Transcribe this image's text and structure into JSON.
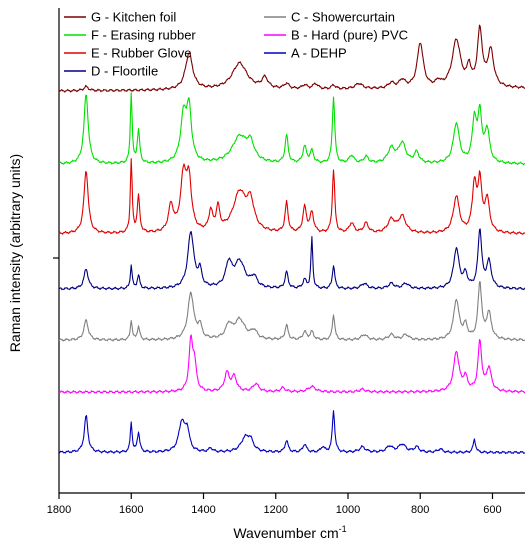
{
  "chart_data": {
    "type": "line",
    "title": "",
    "xlabel": "Wavenumber cm",
    "xlabel_superscript": "-1",
    "ylabel": "Raman intensity (arbitrary units)",
    "x_reversed": true,
    "xlim": [
      1800,
      510
    ],
    "ylim": [
      0,
      7.3
    ],
    "x_ticks": [
      1800,
      1600,
      1400,
      1200,
      1000,
      800,
      600
    ],
    "y_ticks_labeled": false,
    "grid": false,
    "legend_position": "top-left",
    "legend_columns": 2,
    "series": [
      {
        "name": "G - Kitchen foil",
        "color": "#7b0000",
        "offset": 6.0,
        "baseline": 0.05,
        "baseline_slope": 0.04,
        "peaks": [
          [
            1725,
            0.06,
            8
          ],
          [
            1440,
            0.55,
            12
          ],
          [
            1300,
            0.4,
            25
          ],
          [
            1230,
            0.16,
            10
          ],
          [
            1170,
            0.08,
            8
          ],
          [
            1120,
            0.06,
            8
          ],
          [
            1090,
            0.08,
            8
          ],
          [
            1040,
            0.06,
            6
          ],
          [
            970,
            0.08,
            12
          ],
          [
            880,
            0.08,
            10
          ],
          [
            850,
            0.12,
            10
          ],
          [
            800,
            0.68,
            10
          ],
          [
            750,
            0.08,
            8
          ],
          [
            700,
            0.72,
            14
          ],
          [
            665,
            0.28,
            6
          ],
          [
            635,
            0.85,
            8
          ],
          [
            605,
            0.55,
            10
          ]
        ]
      },
      {
        "name": "F - Erasing rubber",
        "color": "#00e000",
        "offset": 4.9,
        "baseline": 0.05,
        "baseline_slope": 0.0,
        "peaks": [
          [
            1725,
            1.05,
            7
          ],
          [
            1600,
            1.05,
            3
          ],
          [
            1580,
            0.5,
            4
          ],
          [
            1455,
            0.7,
            10
          ],
          [
            1440,
            0.75,
            8
          ],
          [
            1300,
            0.4,
            25
          ],
          [
            1270,
            0.25,
            12
          ],
          [
            1170,
            0.42,
            5
          ],
          [
            1120,
            0.25,
            6
          ],
          [
            1100,
            0.18,
            6
          ],
          [
            1040,
            1.0,
            4
          ],
          [
            990,
            0.12,
            8
          ],
          [
            950,
            0.1,
            8
          ],
          [
            880,
            0.22,
            12
          ],
          [
            850,
            0.3,
            12
          ],
          [
            810,
            0.16,
            8
          ],
          [
            700,
            0.6,
            10
          ],
          [
            650,
            0.65,
            7
          ],
          [
            635,
            0.72,
            6
          ],
          [
            615,
            0.5,
            8
          ]
        ]
      },
      {
        "name": "E - Rubber Glove",
        "color": "#e00000",
        "offset": 3.85,
        "baseline": 0.05,
        "baseline_slope": 0.0,
        "peaks": [
          [
            1725,
            0.95,
            7
          ],
          [
            1600,
            1.1,
            3
          ],
          [
            1580,
            0.55,
            4
          ],
          [
            1490,
            0.4,
            8
          ],
          [
            1455,
            0.85,
            10
          ],
          [
            1440,
            0.7,
            8
          ],
          [
            1380,
            0.3,
            6
          ],
          [
            1360,
            0.35,
            6
          ],
          [
            1300,
            0.6,
            22
          ],
          [
            1270,
            0.4,
            12
          ],
          [
            1170,
            0.45,
            5
          ],
          [
            1120,
            0.38,
            6
          ],
          [
            1100,
            0.3,
            6
          ],
          [
            1040,
            0.95,
            4
          ],
          [
            990,
            0.15,
            8
          ],
          [
            950,
            0.15,
            8
          ],
          [
            880,
            0.2,
            12
          ],
          [
            850,
            0.25,
            12
          ],
          [
            700,
            0.55,
            10
          ],
          [
            650,
            0.72,
            7
          ],
          [
            635,
            0.75,
            6
          ],
          [
            615,
            0.5,
            8
          ]
        ]
      },
      {
        "name": "D - Floortile",
        "color": "#000080",
        "offset": 3.05,
        "baseline": 0.02,
        "baseline_slope": 0.0,
        "peaks": [
          [
            1725,
            0.3,
            7
          ],
          [
            1600,
            0.35,
            3
          ],
          [
            1580,
            0.2,
            4
          ],
          [
            1435,
            0.85,
            10
          ],
          [
            1410,
            0.25,
            6
          ],
          [
            1330,
            0.35,
            10
          ],
          [
            1300,
            0.4,
            18
          ],
          [
            1260,
            0.15,
            10
          ],
          [
            1170,
            0.25,
            5
          ],
          [
            1120,
            0.13,
            6
          ],
          [
            1100,
            0.75,
            3
          ],
          [
            1040,
            0.35,
            4
          ],
          [
            955,
            0.08,
            10
          ],
          [
            880,
            0.08,
            10
          ],
          [
            840,
            0.08,
            10
          ],
          [
            700,
            0.6,
            9
          ],
          [
            675,
            0.2,
            7
          ],
          [
            635,
            0.88,
            6
          ],
          [
            610,
            0.4,
            8
          ]
        ]
      },
      {
        "name": "C - Showercurtain",
        "color": "#808080",
        "offset": 2.25,
        "baseline": 0.05,
        "baseline_slope": 0.0,
        "peaks": [
          [
            1725,
            0.3,
            7
          ],
          [
            1600,
            0.3,
            3
          ],
          [
            1580,
            0.2,
            4
          ],
          [
            1435,
            0.7,
            10
          ],
          [
            1410,
            0.2,
            6
          ],
          [
            1330,
            0.2,
            10
          ],
          [
            1300,
            0.3,
            18
          ],
          [
            1260,
            0.12,
            10
          ],
          [
            1170,
            0.22,
            5
          ],
          [
            1120,
            0.12,
            6
          ],
          [
            1100,
            0.12,
            6
          ],
          [
            1040,
            0.38,
            4
          ],
          [
            955,
            0.08,
            10
          ],
          [
            880,
            0.08,
            10
          ],
          [
            840,
            0.08,
            10
          ],
          [
            700,
            0.6,
            9
          ],
          [
            675,
            0.2,
            7
          ],
          [
            635,
            0.85,
            6
          ],
          [
            610,
            0.4,
            8
          ]
        ]
      },
      {
        "name": "B - Hard (pure) PVC",
        "color": "#ff00ff",
        "offset": 1.5,
        "baseline": 0.02,
        "baseline_slope": 0.0,
        "peaks": [
          [
            1435,
            0.75,
            6
          ],
          [
            1425,
            0.4,
            6
          ],
          [
            1335,
            0.28,
            8
          ],
          [
            1315,
            0.22,
            8
          ],
          [
            1255,
            0.12,
            10
          ],
          [
            1180,
            0.06,
            8
          ],
          [
            1100,
            0.08,
            12
          ],
          [
            960,
            0.04,
            10
          ],
          [
            700,
            0.6,
            9
          ],
          [
            675,
            0.2,
            7
          ],
          [
            635,
            0.75,
            6
          ],
          [
            610,
            0.35,
            8
          ]
        ]
      },
      {
        "name": "A - DEHP",
        "color": "#0000c0",
        "offset": 0.6,
        "baseline": 0.01,
        "baseline_slope": 0.0,
        "peaks": [
          [
            1725,
            0.55,
            6
          ],
          [
            1600,
            0.45,
            3
          ],
          [
            1580,
            0.3,
            4
          ],
          [
            1460,
            0.45,
            10
          ],
          [
            1445,
            0.3,
            7
          ],
          [
            1380,
            0.06,
            6
          ],
          [
            1285,
            0.2,
            14
          ],
          [
            1270,
            0.15,
            10
          ],
          [
            1170,
            0.18,
            5
          ],
          [
            1120,
            0.12,
            6
          ],
          [
            1070,
            0.08,
            6
          ],
          [
            1040,
            0.62,
            4
          ],
          [
            960,
            0.08,
            10
          ],
          [
            885,
            0.09,
            10
          ],
          [
            850,
            0.12,
            12
          ],
          [
            810,
            0.08,
            8
          ],
          [
            745,
            0.05,
            8
          ],
          [
            650,
            0.2,
            4
          ]
        ]
      }
    ],
    "legend": [
      {
        "name": "G - Kitchen foil",
        "color": "#7b0000",
        "col": 0,
        "row": 0
      },
      {
        "name": "F - Erasing rubber",
        "color": "#00e000",
        "col": 0,
        "row": 1
      },
      {
        "name": "E - Rubber Glove",
        "color": "#e00000",
        "col": 0,
        "row": 2
      },
      {
        "name": "D - Floortile",
        "color": "#000080",
        "col": 0,
        "row": 3
      },
      {
        "name": "C - Showercurtain",
        "color": "#808080",
        "col": 1,
        "row": 0
      },
      {
        "name": "B - Hard (pure) PVC",
        "color": "#ff00ff",
        "col": 1,
        "row": 1
      },
      {
        "name": "A - DEHP",
        "color": "#0000c0",
        "col": 1,
        "row": 2
      }
    ]
  }
}
